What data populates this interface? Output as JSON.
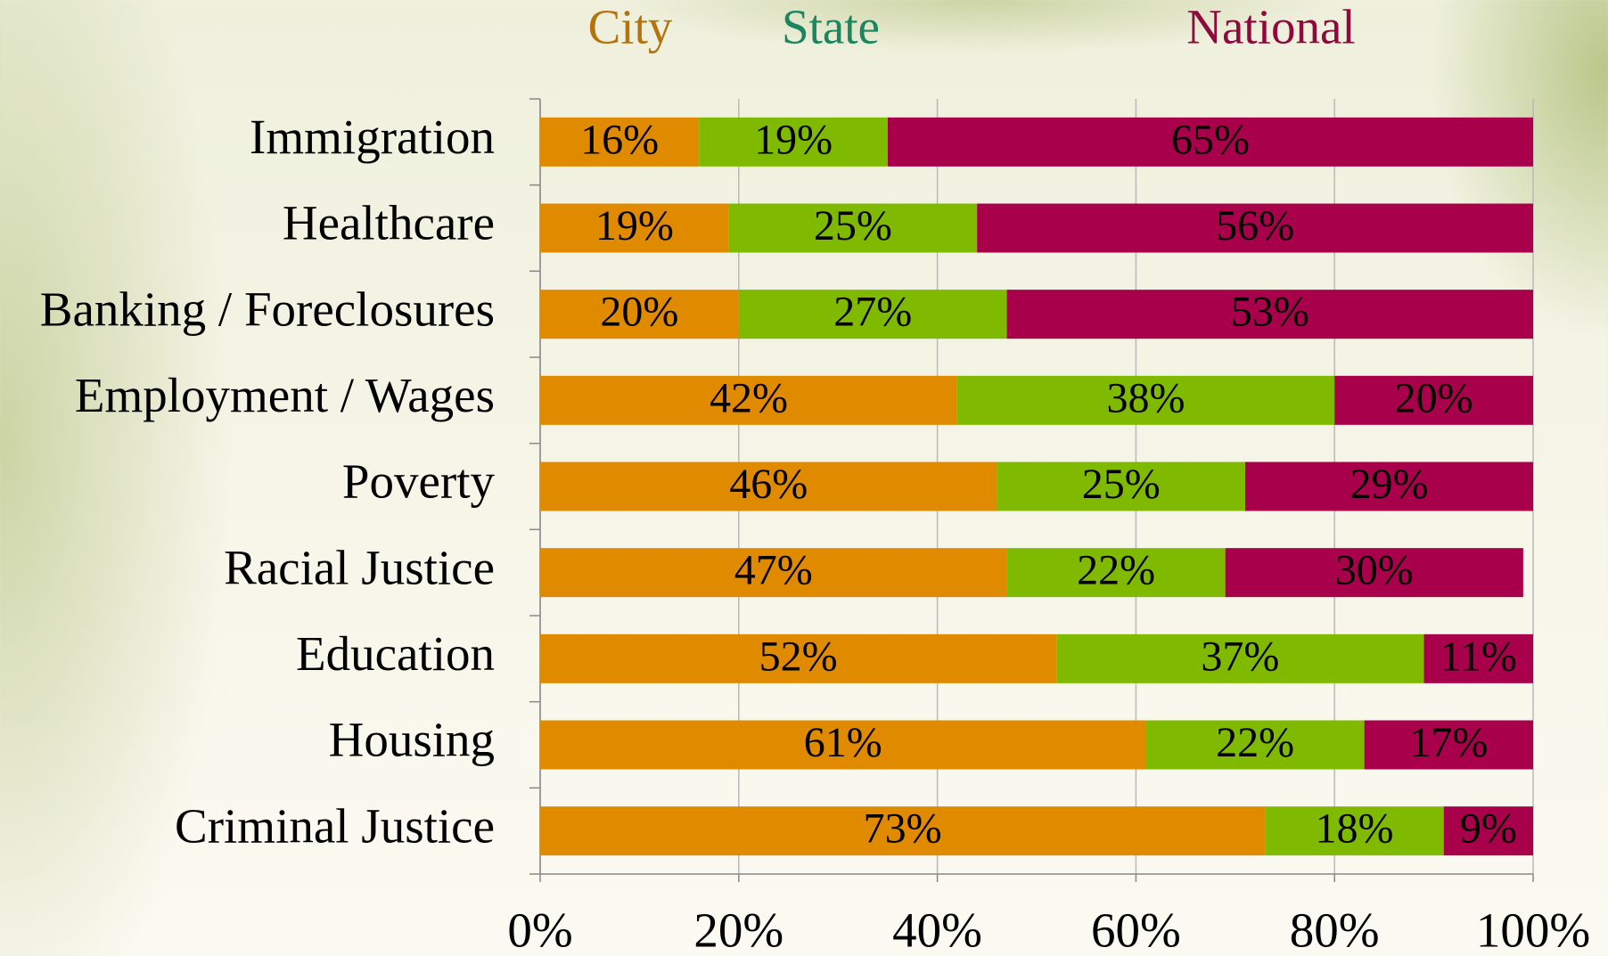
{
  "chart_data": {
    "type": "stacked-horizontal-bar",
    "categories": [
      "Immigration",
      "Healthcare",
      "Banking / Foreclosures",
      "Employment / Wages",
      "Poverty",
      "Racial Justice",
      "Education",
      "Housing",
      "Criminal Justice"
    ],
    "series": [
      {
        "name": "City",
        "color": "#e08a00",
        "legend_color": "#b5730e",
        "values": [
          16,
          19,
          20,
          42,
          46,
          47,
          52,
          61,
          73
        ],
        "value_labels": [
          "16%",
          "19%",
          "20%",
          "42%",
          "46%",
          "47%",
          "52%",
          "61%",
          "73%"
        ]
      },
      {
        "name": "State",
        "color": "#7fba00",
        "legend_color": "#1b8560",
        "values": [
          19,
          25,
          27,
          38,
          25,
          22,
          37,
          22,
          18
        ],
        "value_labels": [
          "19%",
          "25%",
          "27%",
          "38%",
          "25%",
          "22%",
          "37%",
          "22%",
          "18%"
        ]
      },
      {
        "name": "National",
        "color": "#a8004a",
        "legend_color": "#8e0a3c",
        "values": [
          65,
          56,
          53,
          20,
          29,
          30,
          11,
          17,
          9
        ],
        "value_labels": [
          "65%",
          "56%",
          "53%",
          "20%",
          "29%",
          "30%",
          "11%",
          "17%",
          "9%"
        ]
      }
    ],
    "xlim": [
      0,
      100
    ],
    "xticks": [
      {
        "value": 0,
        "label": "0%"
      },
      {
        "value": 20,
        "label": "20%"
      },
      {
        "value": 40,
        "label": "40%"
      },
      {
        "value": 60,
        "label": "60%"
      },
      {
        "value": 80,
        "label": "80%"
      },
      {
        "value": 100,
        "label": "100%"
      }
    ],
    "legend": "top",
    "grid": true
  }
}
